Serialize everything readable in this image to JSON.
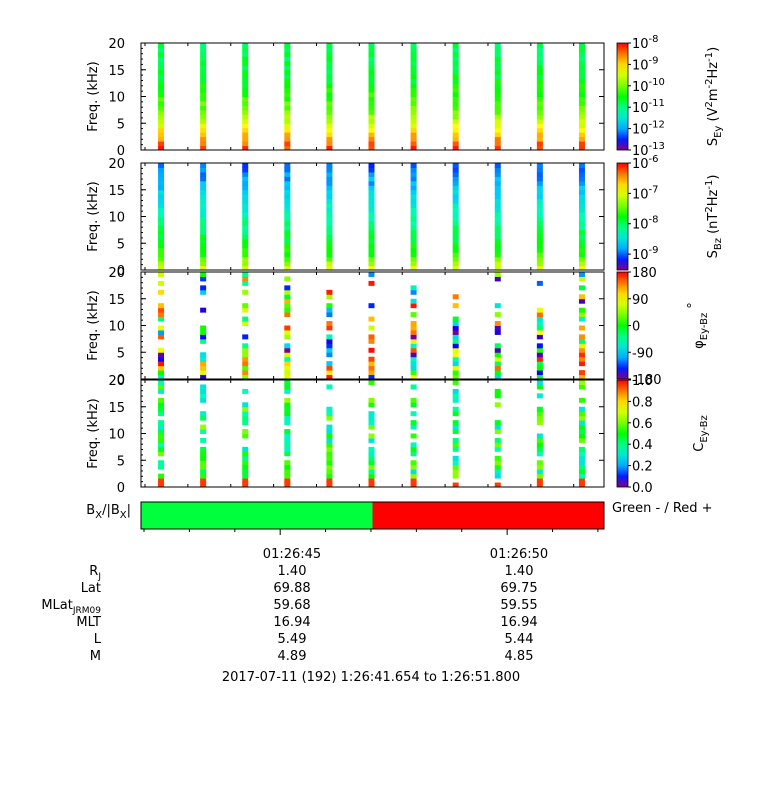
{
  "chart_data": [
    {
      "type": "heatmap",
      "panel": "ey",
      "ylabel": "Freq. (kHz)",
      "ylim": [
        0,
        20
      ],
      "yticks": [
        "0",
        "5",
        "10",
        "15",
        "20"
      ],
      "colorbar": {
        "scale": "log",
        "range": [
          1e-13,
          1e-08
        ],
        "label_main": "S",
        "label_sub": "Ey",
        "label_units_a": " (V",
        "label_units_b": "2",
        "label_units_c": "m",
        "label_units_d": "-2",
        "label_units_e": "Hz",
        "label_units_f": "-1",
        "label_units_g": ")",
        "ticks": [
          {
            "base": "10",
            "exp": "-8"
          },
          {
            "base": "10",
            "exp": "-9"
          },
          {
            "base": "10",
            "exp": "-10"
          },
          {
            "base": "10",
            "exp": "-11"
          },
          {
            "base": "10",
            "exp": "-12"
          },
          {
            "base": "10",
            "exp": "-13"
          }
        ]
      },
      "bursts": 11,
      "profile": [
        0.95,
        0.85,
        0.7,
        0.6,
        0.55,
        0.5,
        0.47,
        0.45,
        0.44,
        0.43
      ]
    },
    {
      "type": "heatmap",
      "panel": "bz",
      "ylabel": "Freq. (kHz)",
      "ylim": [
        0,
        20
      ],
      "yticks": [
        "0",
        "5",
        "10",
        "15",
        "20"
      ],
      "colorbar": {
        "scale": "log",
        "range": [
          3e-10,
          1e-06
        ],
        "label_main": "S",
        "label_sub": "Bz",
        "label_units_a": " (nT",
        "label_units_b": "2",
        "label_units_c": "Hz",
        "label_units_d": "-1",
        "label_units_e": ")",
        "ticks": [
          {
            "base": "10",
            "exp": "-6"
          },
          {
            "base": "10",
            "exp": "-7"
          },
          {
            "base": "10",
            "exp": "-8"
          },
          {
            "base": "10",
            "exp": "-9"
          }
        ]
      },
      "bursts": 11,
      "profile": [
        0.7,
        0.55,
        0.48,
        0.44,
        0.38,
        0.32,
        0.27,
        0.22,
        0.17,
        0.12
      ]
    },
    {
      "type": "heatmap",
      "panel": "phase",
      "ylabel": "Freq. (kHz)",
      "ylim": [
        0,
        20
      ],
      "yticks": [
        "0",
        "5",
        "10",
        "15",
        "20"
      ],
      "colorbar": {
        "scale": "linear",
        "range": [
          -180,
          180
        ],
        "label_main": "φ",
        "label_sub": "Ey-Bz",
        "label_suffix": "°",
        "ticks": [
          "180",
          "90",
          "0",
          "-90",
          "-180"
        ]
      },
      "bursts": 11
    },
    {
      "type": "heatmap",
      "panel": "coherence",
      "ylabel": "Freq. (kHz)",
      "ylim": [
        0,
        20
      ],
      "yticks": [
        "0",
        "5",
        "10",
        "15",
        "20"
      ],
      "colorbar": {
        "scale": "linear",
        "range": [
          0,
          1
        ],
        "label_main": "C",
        "label_sub": "Ey-Bz",
        "ticks": [
          "1.0",
          "0.8",
          "0.6",
          "0.4",
          "0.2",
          "0.0"
        ]
      },
      "bursts": 11
    }
  ],
  "bx_panel": {
    "label_main_a": "B",
    "label_sub_a": "X",
    "label_mid": "/|B",
    "label_sub_b": "X",
    "label_end": "|",
    "legend": "Green - / Red +",
    "split_fraction": 0.5,
    "colors": {
      "negative": "#00ff3c",
      "positive": "#ff0000"
    }
  },
  "time_axis": {
    "labels": [
      "01:26:45",
      "01:26:50"
    ]
  },
  "ephemeris": {
    "rows": [
      {
        "name_main": "R",
        "name_sub": "J",
        "values": [
          "1.40",
          "1.40"
        ]
      },
      {
        "name_main": "Lat",
        "name_sub": "",
        "values": [
          "69.88",
          "69.75"
        ]
      },
      {
        "name_main": "MLat",
        "name_sub": "JRM09",
        "values": [
          "59.68",
          "59.55"
        ]
      },
      {
        "name_main": "MLT",
        "name_sub": "",
        "values": [
          "16.94",
          "16.94"
        ]
      },
      {
        "name_main": "L",
        "name_sub": "",
        "values": [
          "5.49",
          "5.44"
        ]
      },
      {
        "name_main": "M",
        "name_sub": "",
        "values": [
          "4.89",
          "4.85"
        ]
      }
    ]
  },
  "footer": {
    "date_range": "2017-07-11 (192) 1:26:41.654 to 1:26:51.800"
  }
}
